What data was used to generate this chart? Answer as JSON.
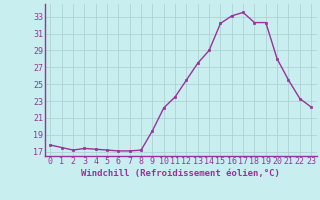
{
  "x": [
    0,
    1,
    2,
    3,
    4,
    5,
    6,
    7,
    8,
    9,
    10,
    11,
    12,
    13,
    14,
    15,
    16,
    17,
    18,
    19,
    20,
    21,
    22,
    23
  ],
  "y": [
    17.8,
    17.5,
    17.2,
    17.4,
    17.3,
    17.2,
    17.1,
    17.1,
    17.2,
    19.5,
    22.2,
    23.5,
    25.5,
    27.5,
    29.0,
    32.2,
    33.1,
    33.5,
    32.3,
    32.3,
    28.0,
    25.5,
    23.3,
    22.3
  ],
  "line_color": "#993399",
  "marker": "s",
  "marker_size": 2.0,
  "bg_color": "#c8eef0",
  "grid_color": "#aacccc",
  "xlabel": "Windchill (Refroidissement éolien,°C)",
  "ylim": [
    16.5,
    34.5
  ],
  "xlim": [
    -0.5,
    23.5
  ],
  "yticks": [
    17,
    19,
    21,
    23,
    25,
    27,
    29,
    31,
    33
  ],
  "xticks": [
    0,
    1,
    2,
    3,
    4,
    5,
    6,
    7,
    8,
    9,
    10,
    11,
    12,
    13,
    14,
    15,
    16,
    17,
    18,
    19,
    20,
    21,
    22,
    23
  ],
  "tick_color": "#993399",
  "label_fontsize": 6.5,
  "tick_fontsize": 6.0,
  "linewidth": 1.0
}
